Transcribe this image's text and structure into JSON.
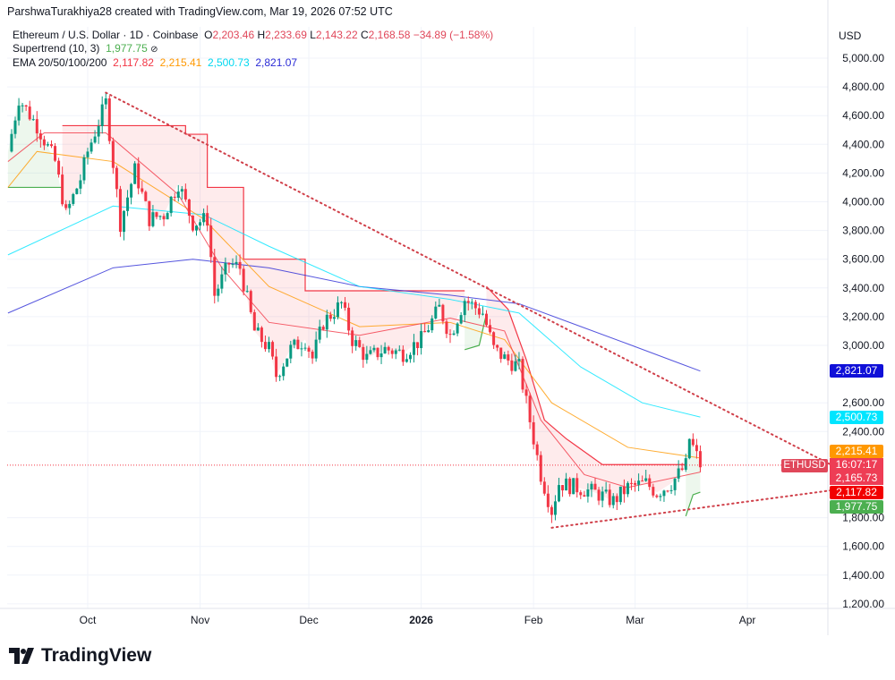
{
  "credit": "ParshwaTurakhiya28 created with TradingView.com, Mar 19, 2026 07:52 UTC",
  "legend": {
    "symbol": "Ethereum / U.S. Dollar · 1D · Coinbase",
    "o_label": "O",
    "o": "2,203.46",
    "h_label": "H",
    "h": "2,233.69",
    "l_label": "L",
    "l": "2,143.22",
    "c_label": "C",
    "c": "2,168.58",
    "change": "−34.89 (−1.58%)",
    "supertrend_label": "Supertrend (10, 3)",
    "supertrend_value": "1,977.75",
    "ema_label": "EMA 20/50/100/200",
    "ema20": "2,117.82",
    "ema50": "2,215.41",
    "ema100": "2,500.73",
    "ema200": "2,821.07"
  },
  "axis": {
    "currency": "USD"
  },
  "badges": {
    "ema200": "2,821.07",
    "ema100": "2,500.73",
    "ema50": "2,215.41",
    "countdown": "16:07:17",
    "price": "2,165.73",
    "ema20": "2,117.82",
    "supertrend": "1,977.75",
    "symbol": "ETHUSD"
  },
  "colors": {
    "up": "#089981",
    "down": "#f23645",
    "ema20": "#f23645",
    "ema50": "#ff9800",
    "ema100": "#00e5ff",
    "ema200": "#2b2bd6",
    "supertrend_up": "#4caf50",
    "supertrend_down": "#f23645"
  },
  "logo": "TradingView",
  "chart_data": {
    "type": "candlestick",
    "ylim": [
      1150,
      5050
    ],
    "y_ticks": [
      5000,
      4800,
      4600,
      4400,
      4200,
      4000,
      3800,
      3600,
      3400,
      3200,
      3000,
      2600,
      2400,
      1800,
      1600,
      1400,
      1200
    ],
    "x_ticks": [
      {
        "label": "Oct",
        "date": "2025-10-01"
      },
      {
        "label": "Nov",
        "date": "2025-11-01"
      },
      {
        "label": "Dec",
        "date": "2025-12-01"
      },
      {
        "label": "2026",
        "date": "2026-01-01"
      },
      {
        "label": "Feb",
        "date": "2026-02-01"
      },
      {
        "label": "Mar",
        "date": "2026-03-01"
      },
      {
        "label": "Apr",
        "date": "2026-04-01"
      }
    ],
    "close": [
      [
        "2025-09-09",
        4350
      ],
      [
        "2025-09-12",
        4720
      ],
      [
        "2025-09-17",
        4530
      ],
      [
        "2025-09-22",
        4280
      ],
      [
        "2025-09-25",
        3910
      ],
      [
        "2025-09-29",
        4160
      ],
      [
        "2025-10-01",
        4350
      ],
      [
        "2025-10-06",
        4690
      ],
      [
        "2025-10-10",
        3850
      ],
      [
        "2025-10-14",
        4220
      ],
      [
        "2025-10-18",
        3880
      ],
      [
        "2025-10-22",
        3910
      ],
      [
        "2025-10-26",
        4130
      ],
      [
        "2025-10-30",
        3850
      ],
      [
        "2025-11-03",
        3880
      ],
      [
        "2025-11-05",
        3350
      ],
      [
        "2025-11-09",
        3570
      ],
      [
        "2025-11-12",
        3540
      ],
      [
        "2025-11-16",
        3100
      ],
      [
        "2025-11-20",
        2975
      ],
      [
        "2025-11-22",
        2790
      ],
      [
        "2025-11-26",
        2975
      ],
      [
        "2025-11-30",
        3040
      ],
      [
        "2025-12-02",
        2910
      ],
      [
        "2025-12-05",
        3160
      ],
      [
        "2025-12-10",
        3290
      ],
      [
        "2025-12-13",
        3040
      ],
      [
        "2025-12-17",
        2910
      ],
      [
        "2025-12-22",
        2975
      ],
      [
        "2025-12-27",
        2945
      ],
      [
        "2026-01-01",
        3040
      ],
      [
        "2026-01-06",
        3260
      ],
      [
        "2026-01-09",
        3070
      ],
      [
        "2026-01-13",
        3320
      ],
      [
        "2026-01-18",
        3225
      ],
      [
        "2026-01-21",
        2975
      ],
      [
        "2026-01-24",
        2910
      ],
      [
        "2026-01-28",
        2850
      ],
      [
        "2026-02-01",
        2350
      ],
      [
        "2026-02-03",
        2100
      ],
      [
        "2026-02-06",
        1850
      ],
      [
        "2026-02-08",
        2040
      ],
      [
        "2026-02-13",
        2010
      ],
      [
        "2026-02-18",
        1975
      ],
      [
        "2026-02-23",
        1915
      ],
      [
        "2026-02-27",
        2010
      ],
      [
        "2026-03-04",
        2040
      ],
      [
        "2026-03-07",
        1975
      ],
      [
        "2026-03-11",
        2040
      ],
      [
        "2026-03-15",
        2165
      ],
      [
        "2026-03-16",
        2350
      ],
      [
        "2026-03-19",
        2168.58
      ]
    ],
    "ema200": [
      [
        "2025-09-09",
        3225
      ],
      [
        "2025-10-08",
        3540
      ],
      [
        "2025-10-30",
        3600
      ],
      [
        "2025-11-20",
        3540
      ],
      [
        "2025-12-15",
        3410
      ],
      [
        "2026-01-09",
        3350
      ],
      [
        "2026-01-28",
        3290
      ],
      [
        "2026-02-27",
        3010
      ],
      [
        "2026-03-19",
        2821.07
      ]
    ],
    "ema100": [
      [
        "2025-09-09",
        3630
      ],
      [
        "2025-10-08",
        3970
      ],
      [
        "2025-11-02",
        3910
      ],
      [
        "2025-11-20",
        3690
      ],
      [
        "2025-12-15",
        3410
      ],
      [
        "2026-01-09",
        3320
      ],
      [
        "2026-01-28",
        3225
      ],
      [
        "2026-02-14",
        2850
      ],
      [
        "2026-03-03",
        2600
      ],
      [
        "2026-03-19",
        2500.73
      ]
    ],
    "ema50": [
      [
        "2025-09-09",
        4100
      ],
      [
        "2025-09-17",
        4350
      ],
      [
        "2025-10-08",
        4280
      ],
      [
        "2025-11-02",
        3880
      ],
      [
        "2025-11-20",
        3410
      ],
      [
        "2025-12-15",
        3130
      ],
      [
        "2026-01-09",
        3160
      ],
      [
        "2026-01-24",
        3040
      ],
      [
        "2026-02-06",
        2600
      ],
      [
        "2026-02-27",
        2290
      ],
      [
        "2026-03-19",
        2215.41
      ]
    ],
    "ema20": [
      [
        "2025-09-09",
        4280
      ],
      [
        "2025-09-19",
        4480
      ],
      [
        "2025-10-06",
        4480
      ],
      [
        "2025-10-26",
        4050
      ],
      [
        "2025-11-07",
        3540
      ],
      [
        "2025-11-20",
        3160
      ],
      [
        "2025-12-15",
        3070
      ],
      [
        "2026-01-09",
        3190
      ],
      [
        "2026-01-24",
        3100
      ],
      [
        "2026-02-03",
        2480
      ],
      [
        "2026-02-15",
        2100
      ],
      [
        "2026-02-27",
        2010
      ],
      [
        "2026-03-19",
        2117.82
      ]
    ],
    "supertrend": [
      {
        "trend": "up",
        "points": [
          [
            "2025-09-09",
            4100
          ],
          [
            "2025-09-24",
            4100
          ]
        ]
      },
      {
        "trend": "down",
        "points": [
          [
            "2025-09-24",
            4530
          ],
          [
            "2025-10-28",
            4530
          ],
          [
            "2025-10-28",
            4470
          ],
          [
            "2025-11-03",
            4470
          ],
          [
            "2025-11-03",
            4100
          ],
          [
            "2025-11-13",
            4100
          ],
          [
            "2025-11-13",
            3600
          ],
          [
            "2025-11-30",
            3600
          ],
          [
            "2025-11-30",
            3380
          ],
          [
            "2026-01-13",
            3380
          ]
        ]
      },
      {
        "trend": "up",
        "points": [
          [
            "2026-01-13",
            2970
          ],
          [
            "2026-01-17",
            3000
          ],
          [
            "2026-01-19",
            3220
          ]
        ]
      },
      {
        "trend": "down",
        "points": [
          [
            "2026-01-19",
            3410
          ],
          [
            "2026-01-25",
            3250
          ],
          [
            "2026-01-30",
            2900
          ],
          [
            "2026-02-04",
            2480
          ],
          [
            "2026-02-10",
            2350
          ],
          [
            "2026-02-20",
            2170
          ],
          [
            "2026-03-15",
            2170
          ]
        ]
      },
      {
        "trend": "up",
        "points": [
          [
            "2026-03-15",
            1810
          ],
          [
            "2026-03-17",
            1960
          ],
          [
            "2026-03-19",
            1977.75
          ]
        ]
      }
    ],
    "trendlines": [
      {
        "from": [
          "2025-10-06",
          4760
        ],
        "to": [
          "2026-04-24",
          2170
        ]
      },
      {
        "from": [
          "2026-02-06",
          1730
        ],
        "to": [
          "2026-04-24",
          1990
        ]
      }
    ],
    "last_price": 2165.73
  }
}
